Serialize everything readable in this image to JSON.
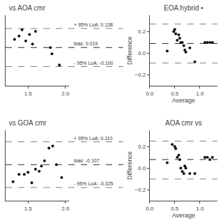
{
  "chart_data": [
    {
      "type": "scatter",
      "title": " vs AOA cmr",
      "x": [
        1.32,
        1.38,
        1.42,
        1.47,
        1.52,
        1.56,
        1.6,
        1.8,
        1.82,
        1.92
      ],
      "values": [
        0.07,
        0.09,
        0.13,
        0.06,
        0.1,
        0.04,
        0.12,
        0.019,
        -0.02,
        -0.09
      ],
      "color": "#111111",
      "xlim": [
        1.2,
        2.05
      ],
      "ylim": [
        -0.22,
        0.22
      ],
      "xticks": [
        1.5,
        {
          "value": 2.0,
          "label": "2.0"
        }
      ],
      "yticks": [],
      "tick_labels": "x",
      "grid": false,
      "bias": 0.019,
      "loa_upper": 0.138,
      "loa_lower": -0.1,
      "annotations": [
        {
          "text": "+ 95% LoA: 0.138",
          "y": 0.138
        },
        {
          "text": "bias: 0.019",
          "y": 0.019
        },
        {
          "text": "- 95% LoA: -0.100",
          "y": -0.1
        }
      ]
    },
    {
      "type": "scatter",
      "title": "EOA hybrid •",
      "x": [
        0.35,
        0.48,
        0.5,
        0.52,
        0.55,
        0.58,
        0.6,
        0.62,
        0.65,
        0.68,
        0.7,
        0.72,
        0.8,
        0.9,
        1.1,
        1.15,
        1.2,
        1.25
      ],
      "values": [
        0.02,
        0.2,
        0.22,
        0.18,
        0.12,
        0.17,
        0.14,
        0.1,
        0.1,
        0.07,
        0.03,
        0.01,
        0.05,
        -0.08,
        0.1,
        0.1,
        0.1,
        0.1
      ],
      "color": "#111111",
      "xlabel": "Average",
      "ylabel": "Difference",
      "xlim": [
        0.0,
        1.35
      ],
      "ylim": [
        -0.3,
        0.35
      ],
      "xticks": [
        {
          "value": 0.0,
          "label": "0.0"
        },
        0.5,
        {
          "value": 1.0,
          "label": "1.0"
        }
      ],
      "yticks": [
        {
          "value": -0.2,
          "label": "−0.2"
        },
        {
          "value": 0.0,
          "label": "0.0"
        },
        0.2
      ],
      "grid": false,
      "bias": 0.09,
      "loa_upper": 0.27,
      "loa_lower": -0.09
    },
    {
      "type": "scatter",
      "title": " vs GOA cmr",
      "x": [
        1.3,
        1.38,
        1.45,
        1.5,
        1.55,
        1.6,
        1.65,
        1.68,
        1.72,
        1.78,
        1.83,
        1.88,
        1.95
      ],
      "values": [
        -0.27,
        -0.2,
        -0.2,
        -0.18,
        -0.28,
        -0.15,
        -0.17,
        -0.12,
        -0.07,
        0.05,
        0.07,
        -0.107,
        -0.23
      ],
      "color": "#111111",
      "xlim": [
        1.2,
        2.05
      ],
      "ylim": [
        -0.45,
        0.22
      ],
      "xticks": [
        1.5,
        {
          "value": 2.0,
          "label": "2.0"
        }
      ],
      "yticks": [],
      "tick_labels": "x",
      "grid": false,
      "bias": -0.107,
      "loa_upper": 0.11,
      "loa_lower": -0.325,
      "annotations": [
        {
          "text": "+ 95% LoA: 0.110",
          "y": 0.11
        },
        {
          "text": "bias: -0.107",
          "y": -0.107
        },
        {
          "text": "- 95% LoA: -0.325",
          "y": -0.325
        }
      ]
    },
    {
      "type": "scatter",
      "title": "AOA cmr vs",
      "x": [
        0.35,
        0.45,
        0.5,
        0.52,
        0.55,
        0.58,
        0.6,
        0.62,
        0.65,
        0.68,
        0.7,
        0.72,
        0.8,
        0.9,
        1.1,
        1.15,
        1.2,
        1.25
      ],
      "values": [
        0.05,
        0.22,
        0.2,
        0.18,
        0.1,
        0.12,
        0.08,
        0.0,
        -0.03,
        -0.05,
        0.02,
        0.0,
        -0.05,
        -0.05,
        0.1,
        0.1,
        0.08,
        0.1
      ],
      "color": "#111111",
      "xlabel": "Average",
      "ylabel": "Difference",
      "xlim": [
        0.0,
        1.35
      ],
      "ylim": [
        -0.3,
        0.35
      ],
      "xticks": [
        {
          "value": 0.0,
          "label": "0.0"
        },
        0.5,
        {
          "value": 1.0,
          "label": "1.0"
        }
      ],
      "yticks": [
        {
          "value": -0.2,
          "label": "−0.2"
        },
        {
          "value": 0.0,
          "label": "0.0"
        },
        0.2
      ],
      "grid": false,
      "bias": 0.08,
      "loa_upper": 0.25,
      "loa_lower": -0.1
    }
  ]
}
